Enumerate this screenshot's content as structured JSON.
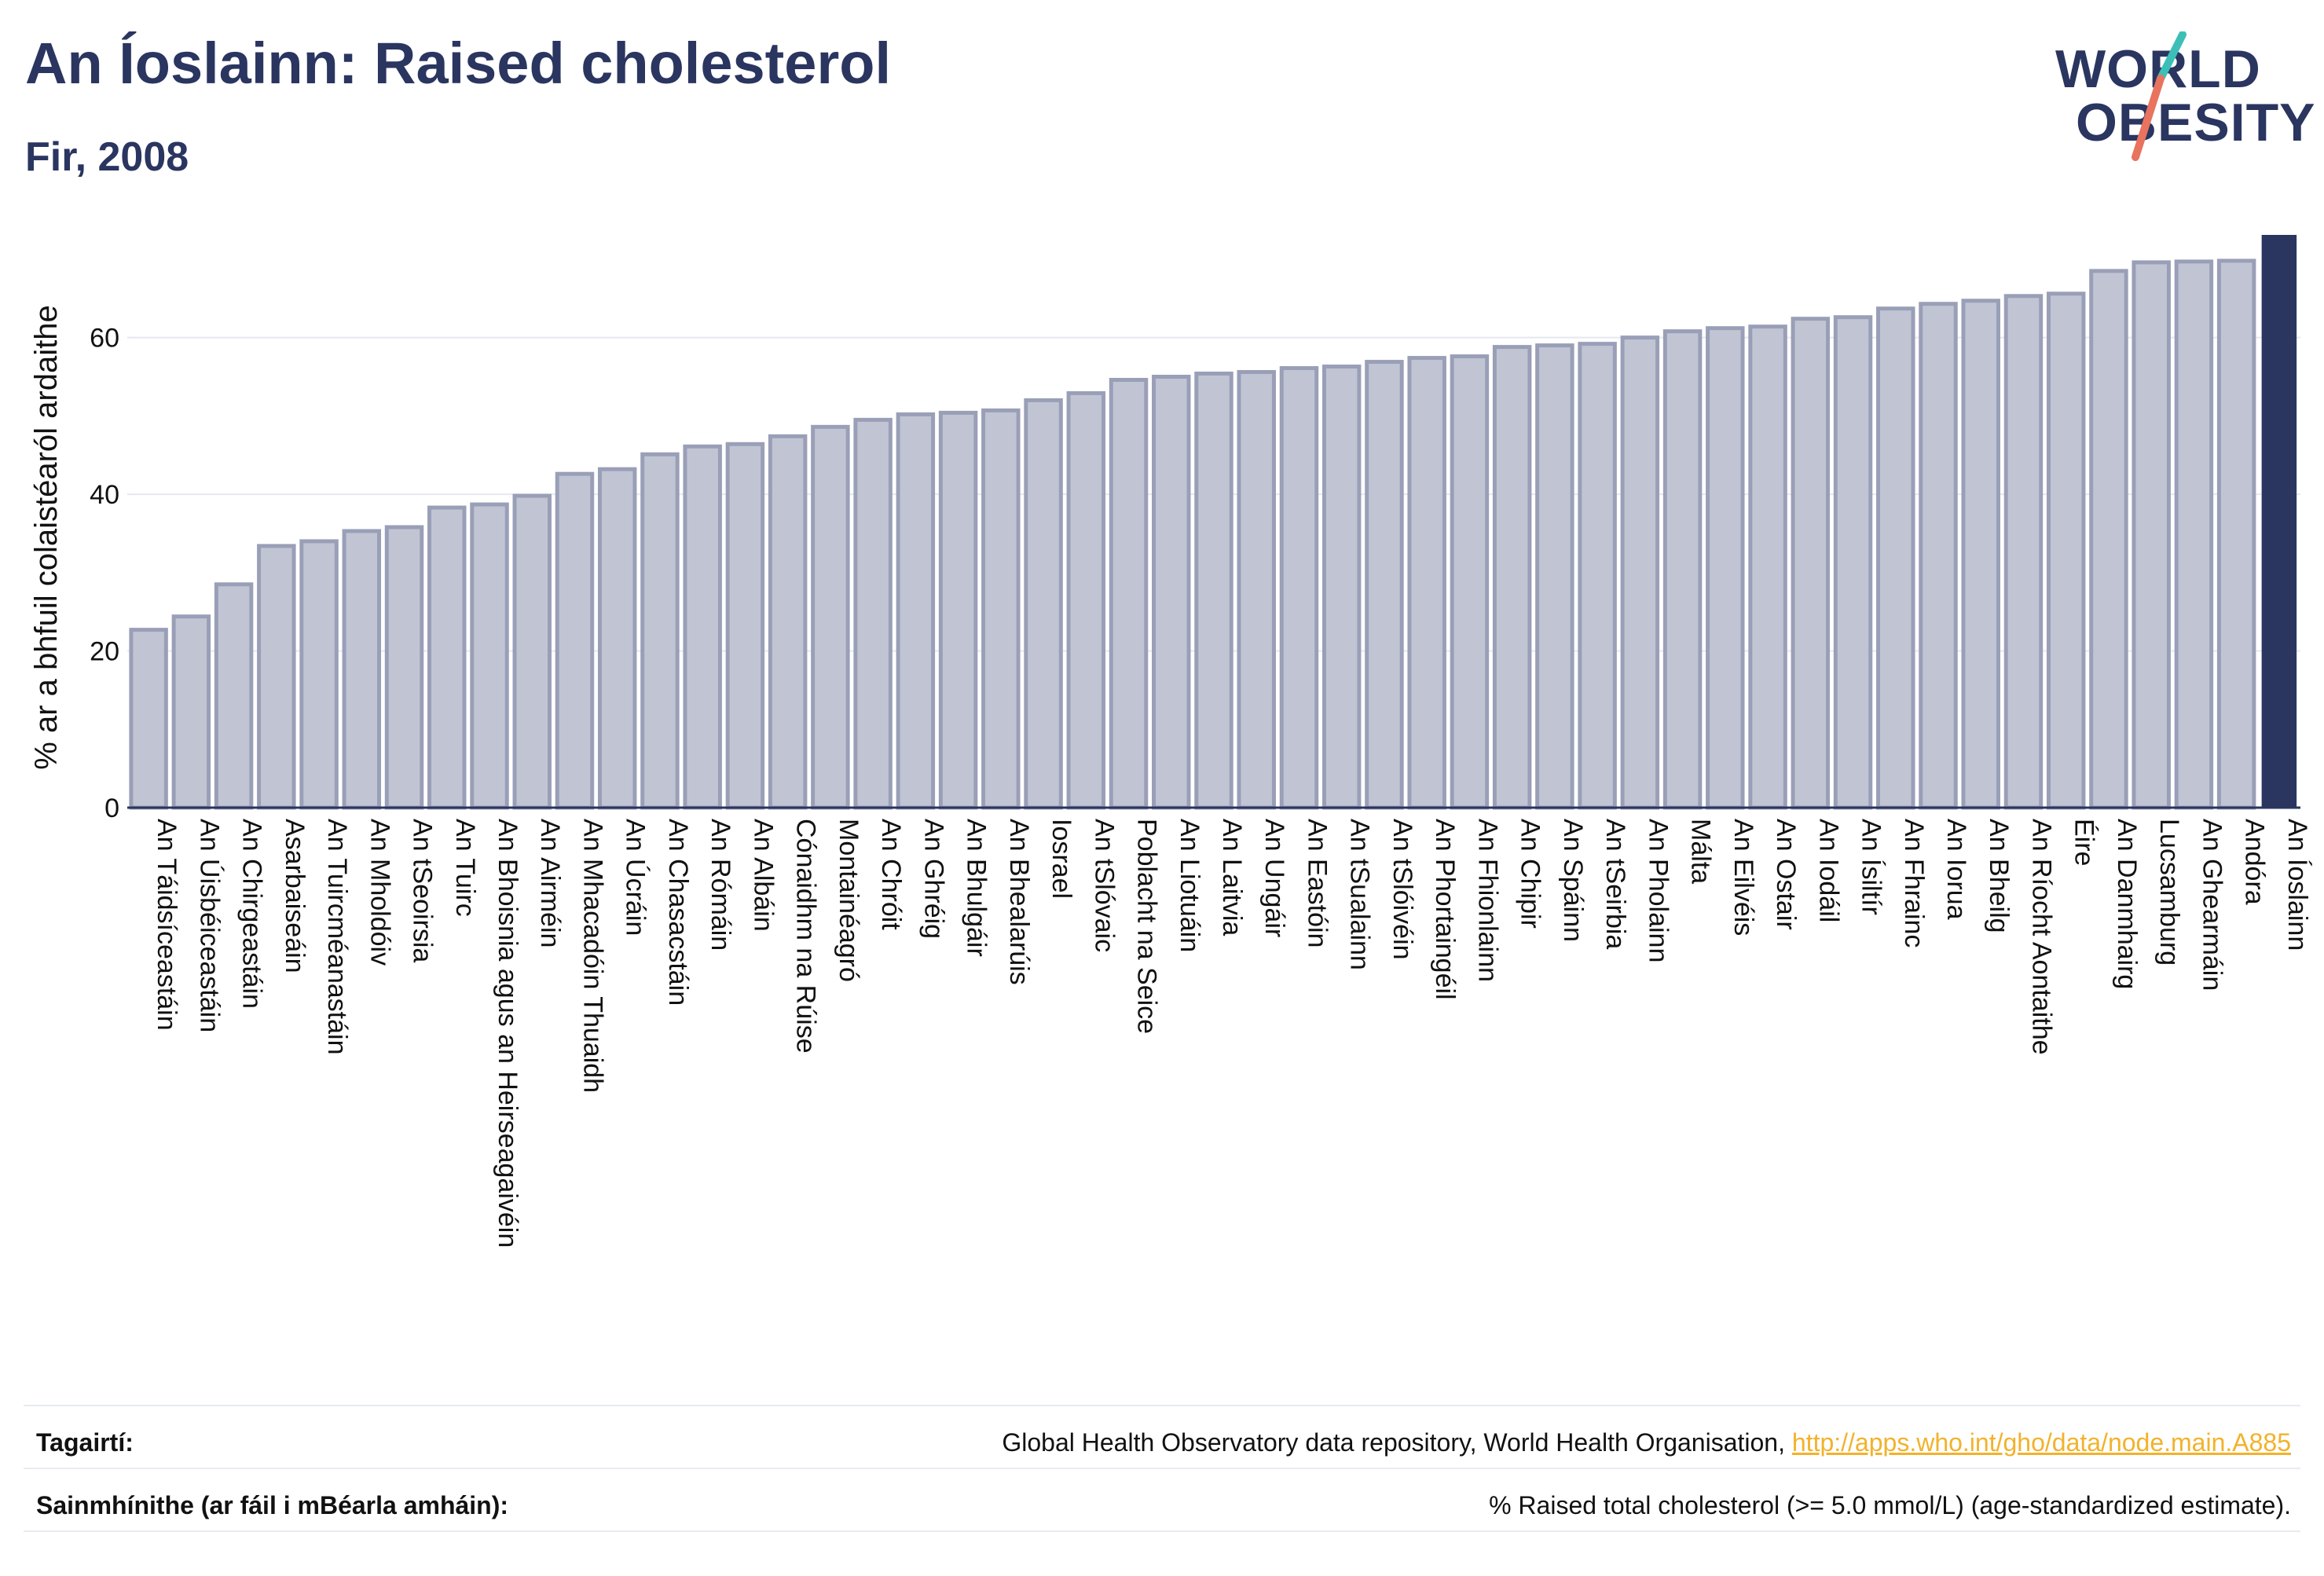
{
  "header": {
    "title": "An Íoslainn: Raised cholesterol",
    "subtitle": "Fir, 2008"
  },
  "logo": {
    "line1": "WORLD",
    "line2": "OBESITY",
    "accent_teal": "#3dbfb8",
    "accent_coral": "#e8735f"
  },
  "footer": {
    "reference_label": "Tagairtí:",
    "reference_text": "Global Health Observatory data repository, World Health Organisation, ",
    "reference_link": "http://apps.who.int/gho/data/node.main.A885",
    "definition_label": "Sainmhínithe (ar fáil i mBéarla amháin):",
    "definition_text": "% Raised total cholesterol (>= 5.0 mmol/L) (age-standardized estimate)."
  },
  "chart_data": {
    "type": "bar",
    "ylabel": "% ar a bhfuil colaistéaról ardaithe",
    "xlabel": "",
    "ylim": [
      0,
      73
    ],
    "yticks": [
      0,
      20,
      40,
      60
    ],
    "grid": true,
    "highlight": "An Íoslainn",
    "colors": {
      "bar_fill": "#c1c5d3",
      "bar_stroke": "#9a9fb8",
      "highlight": "#2a3560"
    },
    "categories": [
      "An Táidsíceastáin",
      "An Úisbéiceastáin",
      "An Chirgeastáin",
      "Asarbaiseáin",
      "An Tuircméanastáin",
      "An Mholdóiv",
      "An tSeoirsia",
      "An Tuirc",
      "An Bhoisnia agus an Heirseagaivéin",
      "An Airméin",
      "An Mhacadóin Thuaidh",
      "An Úcráin",
      "An Chasacstáin",
      "An Rómáin",
      "An Albáin",
      "Cónaidhm na Rúise",
      "Montainéagró",
      "An Chróit",
      "An Ghréig",
      "An Bhulgáir",
      "An Bhealarúis",
      "Iosrael",
      "An tSlóvaic",
      "Poblacht na Seice",
      "An Liotuáin",
      "An Laitvia",
      "An Ungáir",
      "An Eastóin",
      "An tSualainn",
      "An tSlóivéin",
      "An Phortaingéil",
      "An Fhionlainn",
      "An Chipir",
      "An Spáinn",
      "An tSeirbia",
      "An Pholainn",
      "Málta",
      "An Eilvéis",
      "An Ostair",
      "An Iodáil",
      "An Ísiltír",
      "An Fhrainc",
      "An Iorua",
      "An Bheilg",
      "An Ríocht Aontaithe",
      "Éire",
      "An Danmhairg",
      "Lucsamburg",
      "An Ghearmáin",
      "Andóra",
      "An Íoslainn"
    ],
    "values": [
      22.7,
      24.4,
      28.5,
      33.4,
      34.0,
      35.3,
      35.8,
      38.3,
      38.7,
      39.8,
      42.6,
      43.2,
      45.1,
      46.1,
      46.4,
      47.4,
      48.6,
      49.5,
      50.2,
      50.4,
      50.7,
      52.0,
      52.9,
      54.6,
      55.0,
      55.4,
      55.6,
      56.1,
      56.3,
      56.9,
      57.4,
      57.6,
      58.8,
      59.0,
      59.2,
      60.0,
      60.8,
      61.2,
      61.4,
      62.4,
      62.6,
      63.7,
      64.3,
      64.7,
      65.3,
      65.6,
      68.5,
      69.6,
      69.7,
      69.8,
      73.1
    ]
  }
}
